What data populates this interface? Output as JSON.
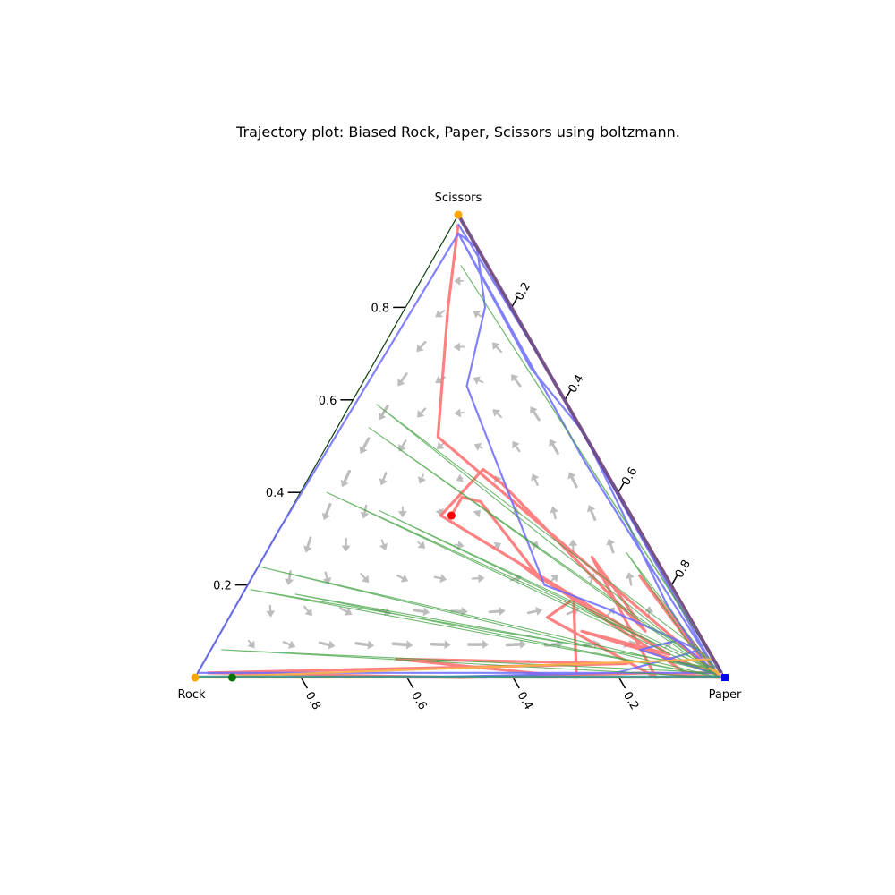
{
  "chart_data": {
    "type": "ternary",
    "title": "Trajectory plot: Biased Rock, Paper, Scissors using boltzmann.",
    "corners": {
      "left": "Rock",
      "right": "Paper",
      "top": "Scissors"
    },
    "tick_values": [
      0.2,
      0.4,
      0.6,
      0.8
    ],
    "tick_labels": {
      "scissors_axis": [
        "0.2",
        "0.4",
        "0.6",
        "0.8"
      ],
      "paper_axis": [
        "0.2",
        "0.4",
        "0.6",
        "0.8"
      ],
      "rock_axis": [
        "0.8",
        "0.6",
        "0.4",
        "0.2"
      ]
    },
    "quiver_field": {
      "color": "#bdbdbd",
      "flow": "rotational, counter-clockwise toward Rock/Paper edge"
    },
    "series": [
      {
        "color": "#ff6b6b",
        "start_marker": {
          "coords": [
            0.34,
            0.31,
            0.35
          ],
          "color": "#ff0000",
          "shape": "circle"
        },
        "points": [
          [
            0.34,
            0.31,
            0.35
          ],
          [
            0.3,
            0.31,
            0.39
          ],
          [
            0.27,
            0.35,
            0.38
          ],
          [
            0.24,
            0.55,
            0.21
          ],
          [
            0.26,
            0.5,
            0.24
          ],
          [
            0.1,
            0.85,
            0.05
          ],
          [
            0.07,
            0.92,
            0.01
          ],
          [
            0.02,
            0.97,
            0.01
          ],
          [
            0.05,
            0.73,
            0.22
          ],
          [
            0.01,
            0.98,
            0.01
          ],
          [
            0.22,
            0.68,
            0.1
          ],
          [
            0.08,
            0.87,
            0.05
          ],
          [
            0.36,
            0.29,
            0.35
          ],
          [
            0.23,
            0.32,
            0.45
          ],
          [
            0.21,
            0.37,
            0.42
          ],
          [
            0.1,
            0.8,
            0.1
          ],
          [
            0.12,
            0.62,
            0.26
          ],
          [
            0.13,
            0.87,
            0.0
          ],
          [
            0.27,
            0.6,
            0.13
          ],
          [
            0.2,
            0.63,
            0.17
          ],
          [
            0.28,
            0.72,
            0.0
          ],
          [
            0.6,
            0.36,
            0.04
          ],
          [
            0.17,
            0.8,
            0.03
          ],
          [
            0.97,
            0.02,
            0.01
          ],
          [
            0.5,
            0.5,
            0.0
          ],
          [
            0.13,
            0.86,
            0.01
          ],
          [
            0.01,
            0.99,
            0.0
          ],
          [
            0.28,
            0.2,
            0.52
          ],
          [
            0.12,
            0.08,
            0.8
          ],
          [
            0.01,
            0.01,
            0.98
          ]
        ]
      },
      {
        "color": "#6b6bff",
        "start_marker": {
          "coords": [
            0.0,
            1.0,
            0.0
          ],
          "color": "#0000ff",
          "shape": "square"
        },
        "points": [
          [
            0.0,
            1.0,
            0.0
          ],
          [
            0.4,
            0.6,
            0.0
          ],
          [
            0.6,
            0.4,
            0.0
          ],
          [
            0.2,
            0.79,
            0.01
          ],
          [
            0.05,
            0.9,
            0.05
          ],
          [
            0.02,
            0.92,
            0.06
          ],
          [
            0.15,
            0.7,
            0.15
          ],
          [
            0.24,
            0.56,
            0.2
          ],
          [
            0.17,
            0.2,
            0.63
          ],
          [
            0.05,
            0.15,
            0.8
          ],
          [
            0.0,
            0.07,
            0.93
          ],
          [
            0.02,
            0.02,
            0.96
          ],
          [
            0.03,
            0.3,
            0.67
          ],
          [
            0.0,
            0.47,
            0.53
          ],
          [
            0.03,
            0.81,
            0.16
          ],
          [
            0.02,
            0.97,
            0.01
          ],
          [
            0.13,
            0.81,
            0.06
          ],
          [
            0.05,
            0.87,
            0.08
          ],
          [
            0.01,
            0.98,
            0.01
          ],
          [
            0.99,
            0.0,
            0.01
          ],
          [
            0.68,
            0.0,
            0.32
          ],
          [
            0.02,
            0.02,
            0.96
          ],
          [
            0.03,
            0.5,
            0.47
          ],
          [
            0.01,
            0.97,
            0.02
          ],
          [
            0.0,
            0.35,
            0.65
          ],
          [
            0.01,
            0.01,
            0.98
          ]
        ]
      },
      {
        "color": "#3fa03f",
        "start_marker": {
          "coords": [
            0.93,
            0.07,
            0.0
          ],
          "color": "#007000",
          "shape": "circle"
        },
        "points": [
          [
            0.93,
            0.07,
            0.0
          ],
          [
            0.01,
            0.99,
            0.0
          ],
          [
            0.92,
            0.02,
            0.06
          ],
          [
            0.01,
            0.98,
            0.01
          ],
          [
            0.76,
            0.0,
            0.24
          ],
          [
            0.01,
            0.99,
            0.0
          ],
          [
            0.72,
            0.1,
            0.18
          ],
          [
            0.02,
            0.96,
            0.02
          ],
          [
            0.55,
            0.05,
            0.4
          ],
          [
            0.01,
            0.99,
            0.0
          ],
          [
            0.8,
            0.01,
            0.19
          ],
          [
            0.01,
            0.97,
            0.02
          ],
          [
            0.47,
            0.17,
            0.36
          ],
          [
            0.01,
            0.98,
            0.01
          ],
          [
            0.4,
            0.06,
            0.54
          ],
          [
            0.01,
            0.99,
            0.0
          ],
          [
            0.36,
            0.05,
            0.59
          ],
          [
            0.0,
            0.97,
            0.03
          ],
          [
            0.05,
            0.06,
            0.89
          ],
          [
            0.0,
            0.99,
            0.01
          ],
          [
            0.03,
            0.9,
            0.07
          ],
          [
            0.05,
            0.68,
            0.27
          ],
          [
            0.01,
            0.98,
            0.01
          ],
          [
            0.02,
            0.91,
            0.07
          ]
        ]
      },
      {
        "color": "#ffb347",
        "start_marker": {
          "coords": [
            0.0,
            0.0,
            1.0
          ],
          "color": "#ffa500",
          "shape": "circle"
        },
        "points": [
          [
            0.0,
            0.0,
            1.0
          ],
          [
            0.0,
            0.97,
            0.03
          ],
          [
            0.0,
            0.55,
            0.45
          ],
          [
            0.0,
            0.96,
            0.04
          ],
          [
            1.0,
            0.0,
            0.0
          ],
          [
            0.0,
            1.0,
            0.0
          ],
          [
            0.02,
            0.96,
            0.02
          ],
          [
            0.0,
            0.99,
            0.01
          ]
        ]
      }
    ]
  }
}
